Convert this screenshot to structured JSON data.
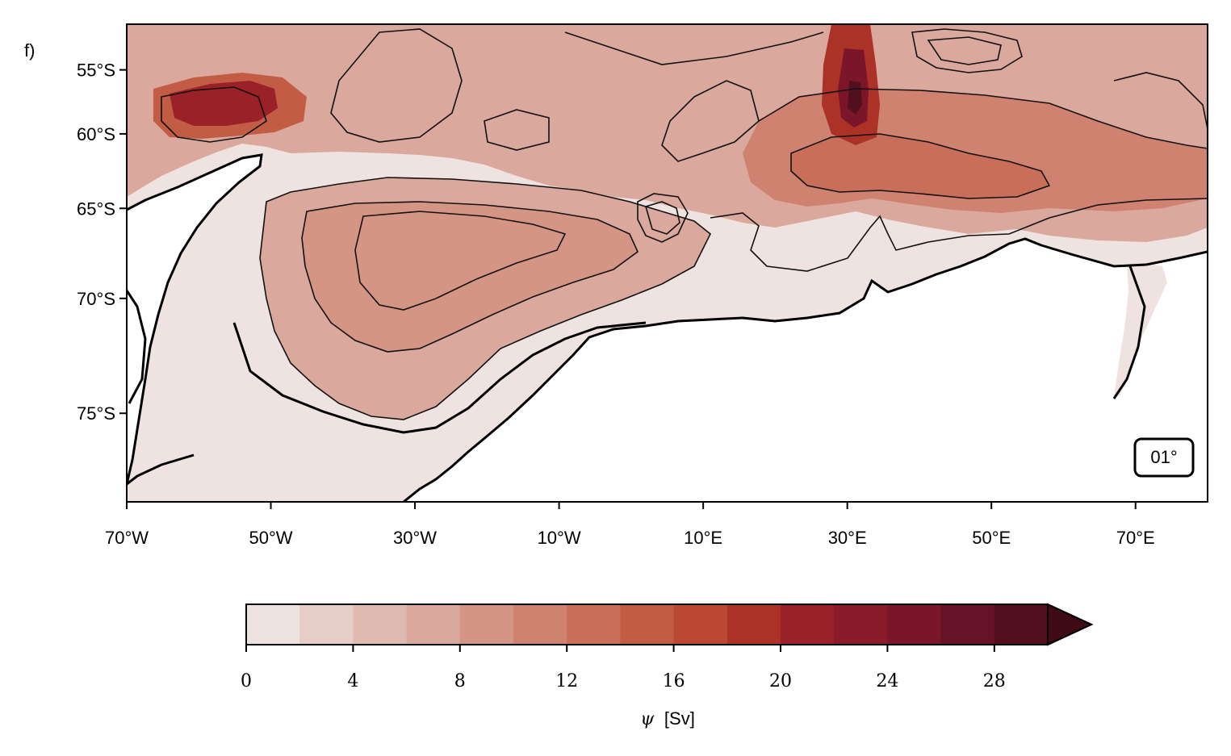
{
  "panel_label": "f)",
  "map": {
    "lon_range": [
      -70,
      80
    ],
    "lat_range": [
      -78,
      -51
    ],
    "lat_ticks": [
      {
        "value": -55,
        "label": "55°S"
      },
      {
        "value": -60,
        "label": "60°S"
      },
      {
        "value": -65,
        "label": "65°S"
      },
      {
        "value": -70,
        "label": "70°S"
      },
      {
        "value": -75,
        "label": "75°S"
      }
    ],
    "lon_ticks": [
      {
        "value": -70,
        "label": "70°W"
      },
      {
        "value": -50,
        "label": "50°W"
      },
      {
        "value": -30,
        "label": "30°W"
      },
      {
        "value": -10,
        "label": "10°W"
      },
      {
        "value": 10,
        "label": "10°E"
      },
      {
        "value": 30,
        "label": "30°E"
      },
      {
        "value": 50,
        "label": "50°E"
      },
      {
        "value": 70,
        "label": "70°E"
      }
    ],
    "resolution_label": "01°"
  },
  "colorbar": {
    "variable_symbol": "ψ",
    "unit_label": "[Sv]",
    "levels": [
      0,
      2,
      4,
      6,
      8,
      10,
      12,
      14,
      16,
      18,
      20,
      22,
      24,
      26,
      28,
      30
    ],
    "tick_values": [
      0,
      4,
      8,
      12,
      16,
      20,
      24,
      28
    ],
    "tick_labels": [
      "0",
      "4",
      "8",
      "12",
      "16",
      "20",
      "24",
      "28"
    ],
    "extend": "max",
    "colors": [
      "#efe3e1",
      "#e6cdc7",
      "#e0bab1",
      "#daa89c",
      "#d59585",
      "#d08270",
      "#c96e58",
      "#c35c45",
      "#bb4834",
      "#ac3228",
      "#9a2127",
      "#8b1a2a",
      "#7a152a",
      "#671227",
      "#520f1e",
      "#420c16"
    ],
    "extend_color": "#3f0b14"
  },
  "colors": {
    "land": "#ffffff",
    "coast": "#000000",
    "contour": "#111111"
  }
}
